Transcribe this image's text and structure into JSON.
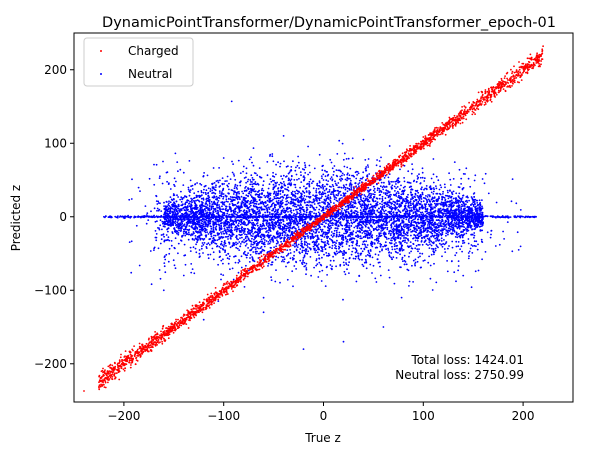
{
  "chart_data": {
    "type": "scatter",
    "title": "DynamicPointTransformer/DynamicPointTransformer_epoch-01",
    "xlabel": "True z",
    "ylabel": "Predicted z",
    "xlim": [
      -250,
      250
    ],
    "ylim": [
      -252,
      250
    ],
    "xticks": [
      -200,
      -100,
      0,
      100,
      200
    ],
    "xtick_labels": [
      "−200",
      "−100",
      "0",
      "100",
      "200"
    ],
    "yticks": [
      -200,
      -100,
      0,
      100,
      200
    ],
    "ytick_labels": [
      "−200",
      "−100",
      "0",
      "100",
      "200"
    ],
    "grid": false,
    "legend_position": "top-left",
    "series": [
      {
        "name": "Charged",
        "color": "#ff0000",
        "description_points": [
          [
            -240,
            -237
          ],
          [
            -225,
            -225
          ],
          [
            -215,
            -213
          ],
          [
            -200,
            -200
          ],
          [
            -180,
            -178
          ],
          [
            -160,
            -160
          ],
          [
            -140,
            -141
          ],
          [
            -120,
            -118
          ],
          [
            -100,
            -100
          ],
          [
            -80,
            -79
          ],
          [
            80,
            78
          ],
          [
            100,
            100
          ],
          [
            120,
            121
          ],
          [
            140,
            139
          ],
          [
            160,
            160
          ],
          [
            180,
            181
          ],
          [
            200,
            202
          ],
          [
            215,
            220
          ],
          [
            220,
            232
          ]
        ]
      },
      {
        "name": "Neutral",
        "color": "#0000ff",
        "description_points": [
          [
            -220,
            0
          ],
          [
            -200,
            0
          ],
          [
            -180,
            0
          ],
          [
            -160,
            -100
          ],
          [
            -140,
            60
          ],
          [
            -120,
            -140
          ],
          [
            -100,
            80
          ],
          [
            -92,
            157
          ],
          [
            -60,
            -130
          ],
          [
            -40,
            110
          ],
          [
            -20,
            -180
          ],
          [
            0,
            50
          ],
          [
            20,
            -170
          ],
          [
            40,
            105
          ],
          [
            60,
            -150
          ],
          [
            80,
            70
          ],
          [
            100,
            -60
          ],
          [
            120,
            10
          ],
          [
            140,
            -80
          ],
          [
            160,
            0
          ],
          [
            180,
            -20
          ],
          [
            200,
            0
          ],
          [
            213,
            0
          ]
        ]
      }
    ],
    "annotations": [
      "Total loss: 1424.01",
      "Neutral loss: 2750.99"
    ]
  }
}
